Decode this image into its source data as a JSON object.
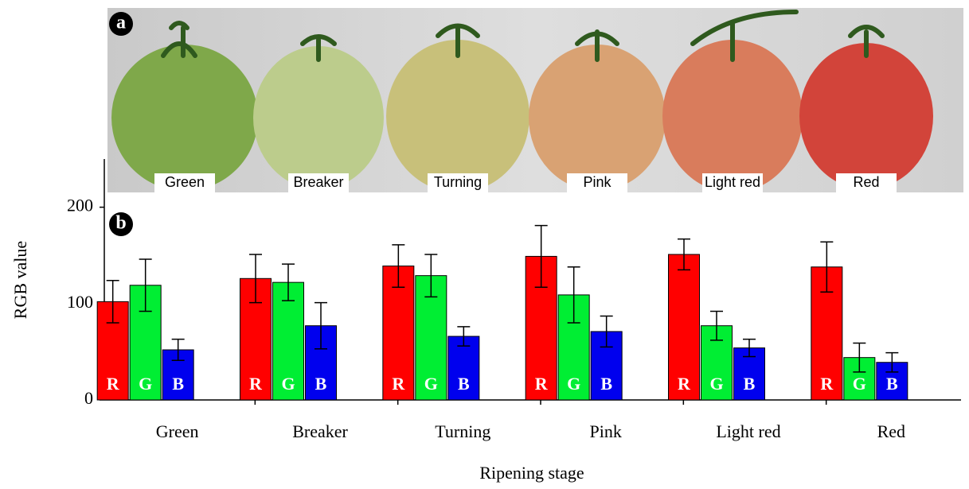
{
  "photo": {
    "panel_label": "a",
    "labels": [
      "Green",
      "Breaker",
      "Turning",
      "Pink",
      "Light red",
      "Red"
    ]
  },
  "chart_data": {
    "type": "bar",
    "panel_label": "b",
    "x_label": "Ripening stage",
    "y_label": "RGB value",
    "categories": [
      "Green",
      "Breaker",
      "Turning",
      "Pink",
      "Light red",
      "Red"
    ],
    "series": [
      {
        "name": "R",
        "color": "#ff0000",
        "values": [
          102,
          126,
          139,
          149,
          151,
          138
        ],
        "errors": [
          22,
          25,
          22,
          32,
          16,
          26
        ]
      },
      {
        "name": "G",
        "color": "#00ee33",
        "values": [
          119,
          122,
          129,
          109,
          77,
          44
        ],
        "errors": [
          27,
          19,
          22,
          29,
          15,
          15
        ]
      },
      {
        "name": "B",
        "color": "#0000ee",
        "values": [
          52,
          77,
          66,
          71,
          54,
          39
        ],
        "errors": [
          11,
          24,
          10,
          16,
          9,
          10
        ]
      }
    ],
    "ylim": [
      0,
      250
    ],
    "yticks": [
      0,
      100,
      200
    ]
  }
}
